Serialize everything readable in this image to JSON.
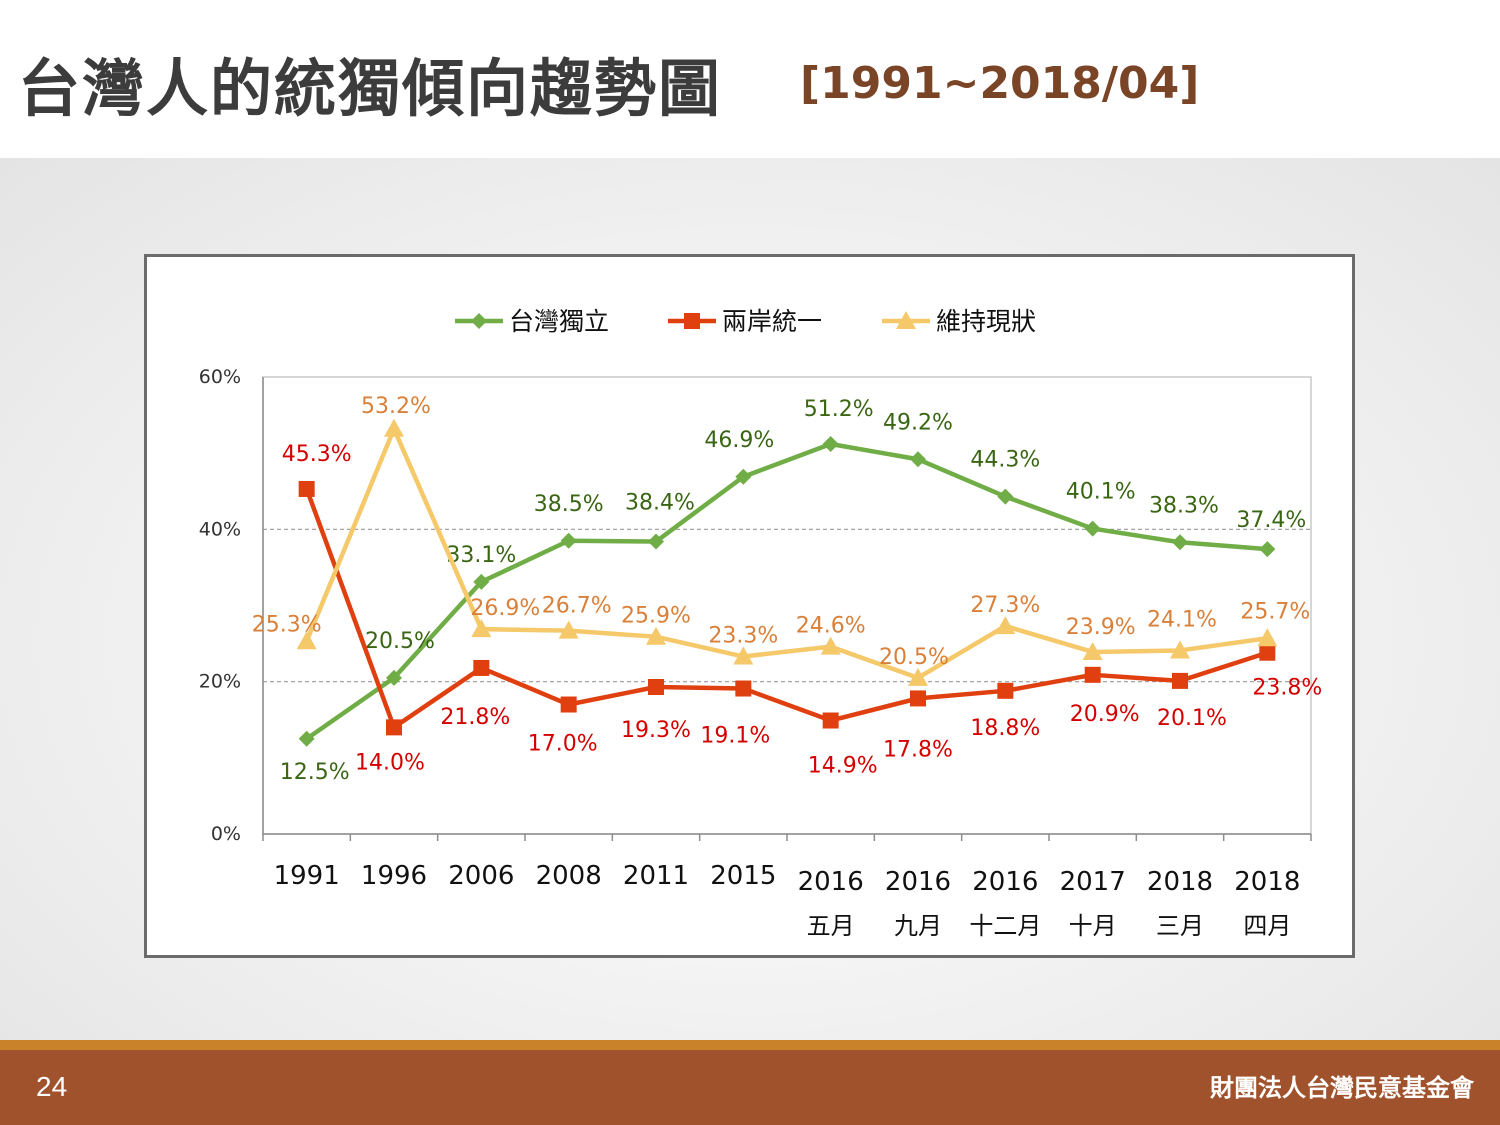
{
  "slide": {
    "title": "台灣人的統獨傾向趨勢圖",
    "subtitle": "[1991~2018/04]",
    "page_number": "24",
    "organization": "財團法人台灣民意基金會"
  },
  "colors": {
    "independence": "#70ad47",
    "independence_label": "#3a6614",
    "unification": "#e04010",
    "unification_label": "#d40000",
    "status_quo": "#f5c86a",
    "status_quo_label": "#d9803a",
    "footer": "#a0522d",
    "footer_line": "#c9822a"
  },
  "chart_data": {
    "type": "line",
    "categories": [
      [
        "1991"
      ],
      [
        "1996"
      ],
      [
        "2006"
      ],
      [
        "2008"
      ],
      [
        "2011"
      ],
      [
        "2015"
      ],
      [
        "2016",
        "五月"
      ],
      [
        "2016",
        "九月"
      ],
      [
        "2016",
        "十二月"
      ],
      [
        "2017",
        "十月"
      ],
      [
        "2018",
        "三月"
      ],
      [
        "2018",
        "四月"
      ]
    ],
    "ylim": [
      0,
      60
    ],
    "yticks": [
      "0%",
      "20%",
      "40%",
      "60%"
    ],
    "ytick_values": [
      0,
      20,
      40,
      60
    ],
    "gridlines": [
      20,
      40
    ],
    "legend_position": "top",
    "series": [
      {
        "name": "台灣獨立",
        "marker": "diamond",
        "values": [
          12.5,
          20.5,
          33.1,
          38.5,
          38.4,
          46.9,
          51.2,
          49.2,
          44.3,
          40.1,
          38.3,
          37.4
        ],
        "labels": [
          "12.5%",
          "20.5%",
          "33.1%",
          "38.5%",
          "38.4%",
          "46.9%",
          "51.2%",
          "49.2%",
          "44.3%",
          "40.1%",
          "38.3%",
          "37.4%"
        ]
      },
      {
        "name": "兩岸統一",
        "marker": "square",
        "values": [
          45.3,
          14.0,
          21.8,
          17.0,
          19.3,
          19.1,
          14.9,
          17.8,
          18.8,
          20.9,
          20.1,
          23.8
        ],
        "labels": [
          "45.3%",
          "14.0%",
          "21.8%",
          "17.0%",
          "19.3%",
          "19.1%",
          "14.9%",
          "17.8%",
          "18.8%",
          "20.9%",
          "20.1%",
          "23.8%"
        ]
      },
      {
        "name": "維持現狀",
        "marker": "triangle",
        "values": [
          25.3,
          53.2,
          26.9,
          26.7,
          25.9,
          23.3,
          24.6,
          20.5,
          27.3,
          23.9,
          24.1,
          25.7
        ],
        "labels": [
          "25.3%",
          "53.2%",
          "26.9%",
          "26.7%",
          "25.9%",
          "23.3%",
          "24.6%",
          "20.5%",
          "27.3%",
          "23.9%",
          "24.1%",
          "25.7%"
        ]
      }
    ]
  }
}
